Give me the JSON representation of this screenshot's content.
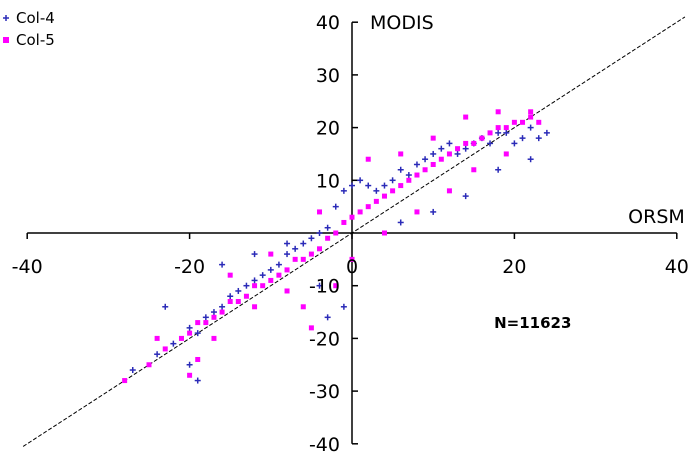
{
  "chart_data": {
    "type": "scatter",
    "xlabel": "ORSM",
    "ylabel": "MODIS",
    "xlim": [
      -40,
      40
    ],
    "ylim": [
      -40,
      40
    ],
    "x_ticks": [
      "-40",
      "-20",
      "0",
      "20",
      "40"
    ],
    "y_ticks": [
      "40",
      "30",
      "20",
      "10",
      "-10",
      "-20",
      "-30",
      "-40"
    ],
    "annotation": "N=11623",
    "reference_line": {
      "style": "dashed",
      "slope": 1,
      "intercept": 0
    },
    "legend_position": "top-left",
    "series": [
      {
        "name": "Col-4",
        "color": "#2b2bb8",
        "marker": "plus",
        "points": [
          [
            -27,
            -26
          ],
          [
            -24,
            -23
          ],
          [
            -22,
            -21
          ],
          [
            -20,
            -18
          ],
          [
            -19,
            -19
          ],
          [
            -18,
            -16
          ],
          [
            -17,
            -15
          ],
          [
            -16,
            -14
          ],
          [
            -15,
            -12
          ],
          [
            -14,
            -11
          ],
          [
            -13,
            -10
          ],
          [
            -12,
            -9
          ],
          [
            -11,
            -8
          ],
          [
            -10,
            -7
          ],
          [
            -9,
            -6
          ],
          [
            -8,
            -4
          ],
          [
            -7,
            -3
          ],
          [
            -6,
            -2
          ],
          [
            -5,
            -1
          ],
          [
            -4,
            0
          ],
          [
            -3,
            1
          ],
          [
            -2,
            5
          ],
          [
            -1,
            8
          ],
          [
            0,
            9
          ],
          [
            1,
            10
          ],
          [
            2,
            9
          ],
          [
            3,
            8
          ],
          [
            4,
            9
          ],
          [
            5,
            10
          ],
          [
            6,
            12
          ],
          [
            7,
            11
          ],
          [
            8,
            13
          ],
          [
            9,
            14
          ],
          [
            10,
            15
          ],
          [
            11,
            16
          ],
          [
            12,
            17
          ],
          [
            13,
            15
          ],
          [
            14,
            16
          ],
          [
            15,
            17
          ],
          [
            16,
            18
          ],
          [
            17,
            17
          ],
          [
            18,
            19
          ],
          [
            19,
            19
          ],
          [
            20,
            17
          ],
          [
            21,
            18
          ],
          [
            22,
            20
          ],
          [
            23,
            18
          ],
          [
            24,
            19
          ],
          [
            -20,
            -25
          ],
          [
            -19,
            -28
          ],
          [
            -23,
            -14
          ],
          [
            -16,
            -6
          ],
          [
            -12,
            -4
          ],
          [
            -8,
            -2
          ],
          [
            -3,
            -16
          ],
          [
            -4,
            -10
          ],
          [
            -1,
            -14
          ],
          [
            6,
            2
          ],
          [
            10,
            4
          ],
          [
            14,
            7
          ],
          [
            18,
            12
          ],
          [
            22,
            14
          ]
        ]
      },
      {
        "name": "Col-5",
        "color": "#ff00ff",
        "marker": "square",
        "points": [
          [
            -28,
            -28
          ],
          [
            -25,
            -25
          ],
          [
            -23,
            -22
          ],
          [
            -21,
            -20
          ],
          [
            -20,
            -19
          ],
          [
            -19,
            -17
          ],
          [
            -18,
            -17
          ],
          [
            -17,
            -16
          ],
          [
            -16,
            -15
          ],
          [
            -15,
            -13
          ],
          [
            -14,
            -13
          ],
          [
            -13,
            -12
          ],
          [
            -12,
            -10
          ],
          [
            -11,
            -10
          ],
          [
            -10,
            -9
          ],
          [
            -9,
            -8
          ],
          [
            -8,
            -7
          ],
          [
            -7,
            -5
          ],
          [
            -6,
            -5
          ],
          [
            -5,
            -4
          ],
          [
            -4,
            -3
          ],
          [
            -3,
            -1
          ],
          [
            -2,
            0
          ],
          [
            -1,
            2
          ],
          [
            0,
            3
          ],
          [
            1,
            4
          ],
          [
            2,
            5
          ],
          [
            3,
            6
          ],
          [
            4,
            7
          ],
          [
            5,
            8
          ],
          [
            6,
            9
          ],
          [
            7,
            10
          ],
          [
            8,
            11
          ],
          [
            9,
            12
          ],
          [
            10,
            13
          ],
          [
            11,
            14
          ],
          [
            12,
            15
          ],
          [
            13,
            16
          ],
          [
            14,
            17
          ],
          [
            15,
            17
          ],
          [
            16,
            18
          ],
          [
            17,
            19
          ],
          [
            18,
            20
          ],
          [
            19,
            20
          ],
          [
            20,
            21
          ],
          [
            21,
            21
          ],
          [
            22,
            22
          ],
          [
            23,
            21
          ],
          [
            -19,
            -24
          ],
          [
            -20,
            -27
          ],
          [
            -6,
            -14
          ],
          [
            -5,
            -18
          ],
          [
            -2,
            -10
          ],
          [
            0,
            -5
          ],
          [
            4,
            0
          ],
          [
            8,
            4
          ],
          [
            12,
            8
          ],
          [
            15,
            12
          ],
          [
            19,
            15
          ],
          [
            -15,
            -8
          ],
          [
            -10,
            -4
          ],
          [
            -4,
            4
          ],
          [
            2,
            14
          ],
          [
            6,
            15
          ],
          [
            10,
            18
          ],
          [
            14,
            22
          ],
          [
            18,
            23
          ],
          [
            22,
            23
          ],
          [
            -24,
            -20
          ],
          [
            -17,
            -20
          ],
          [
            -12,
            -14
          ],
          [
            -8,
            -11
          ]
        ]
      }
    ]
  }
}
